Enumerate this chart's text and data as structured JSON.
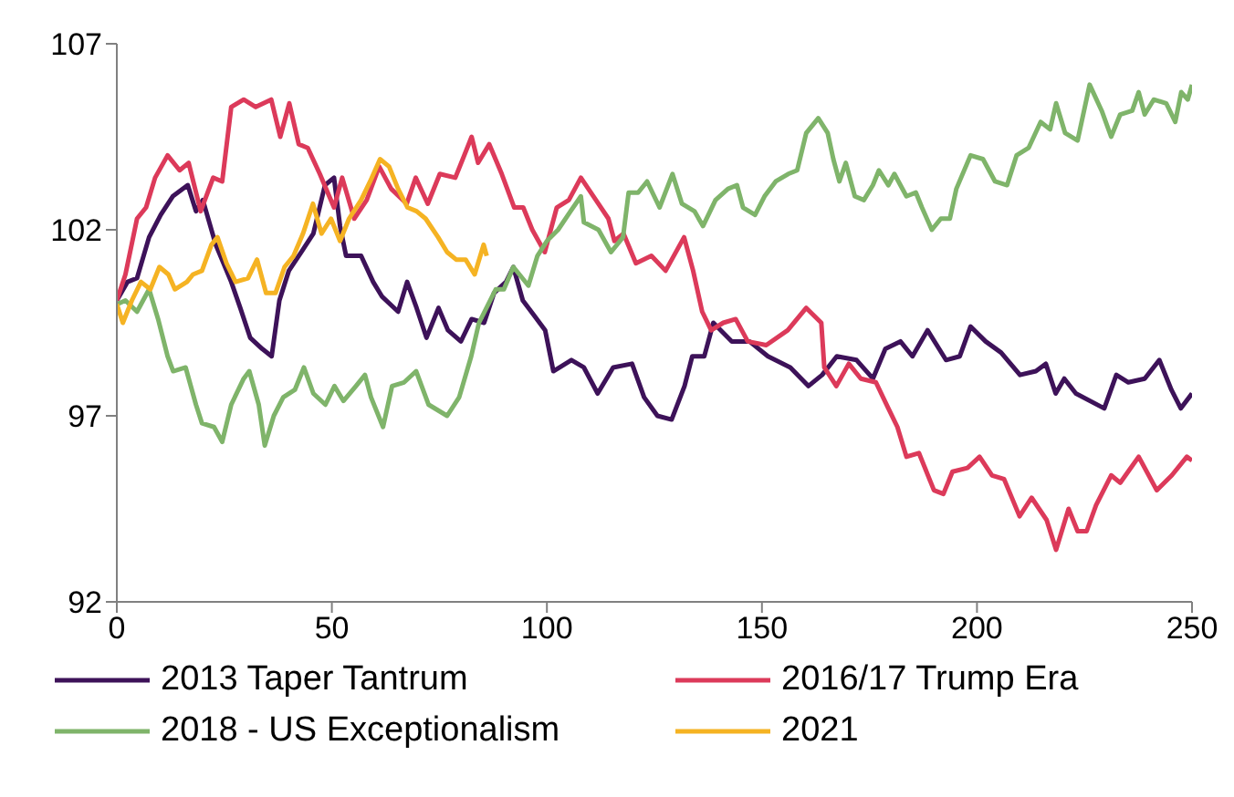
{
  "chart_data": {
    "type": "line",
    "xlim": [
      0,
      250
    ],
    "xticks": [
      0,
      50,
      100,
      150,
      200,
      250
    ],
    "ylim": [
      92,
      107
    ],
    "yticks": [
      92,
      97,
      102,
      107
    ],
    "grid": false,
    "legend": "bottom",
    "marker": "none",
    "line_style": "solid",
    "series": [
      {
        "name": "2013 Taper Tantrum",
        "color": "#3d1259",
        "x": [
          0,
          2.5,
          4.7,
          7.5,
          10.2,
          13,
          16.5,
          18.4,
          20,
          23,
          26.6,
          28.7,
          31,
          33.8,
          36,
          37.8,
          40,
          42.9,
          45.7,
          48.4,
          50.5,
          51.9,
          53.3,
          56.8,
          59.6,
          61.7,
          65.4,
          67.5,
          69.7,
          72,
          74.8,
          77,
          80,
          82.5,
          85.4,
          87.7,
          90.5,
          92.2,
          94.4,
          97,
          99.6,
          101.5,
          105.7,
          108.6,
          111.8,
          115.4,
          119.8,
          122.6,
          125.7,
          129,
          132,
          133.8,
          136.6,
          138.7,
          143,
          147.1,
          151.4,
          156.6,
          160.8,
          164,
          167.4,
          172,
          175.8,
          178.7,
          182.2,
          185,
          188.5,
          192.8,
          196,
          198.5,
          202,
          205.6,
          210,
          213.7,
          216,
          218.3,
          220.3,
          223,
          229.6,
          232.4,
          235.2,
          239,
          242.4,
          245.2,
          247.4,
          250
        ],
        "values": [
          100.1,
          100.6,
          100.7,
          101.8,
          102.4,
          102.9,
          103.2,
          102.5,
          102.8,
          101.6,
          100.6,
          99.9,
          99.1,
          98.8,
          98.6,
          100.1,
          100.9,
          101.4,
          101.9,
          103.2,
          103.4,
          102.1,
          101.3,
          101.3,
          100.6,
          100.2,
          99.8,
          100.6,
          99.9,
          99.1,
          99.9,
          99.3,
          99,
          99.6,
          99.5,
          100.3,
          100.6,
          101,
          100.1,
          99.7,
          99.3,
          98.2,
          98.5,
          98.3,
          97.6,
          98.3,
          98.4,
          97.5,
          97,
          96.9,
          97.8,
          98.6,
          98.6,
          99.5,
          99,
          99,
          98.6,
          98.3,
          97.8,
          98.1,
          98.6,
          98.5,
          98,
          98.8,
          99,
          98.6,
          99.3,
          98.5,
          98.6,
          99.4,
          99,
          98.7,
          98.1,
          98.2,
          98.4,
          97.6,
          98,
          97.6,
          97.2,
          98.1,
          97.9,
          98,
          98.5,
          97.7,
          97.2,
          97.6
        ]
      },
      {
        "name": "2016/17 Trump Era",
        "color": "#dc3a5a",
        "x": [
          0,
          2,
          4.7,
          6.8,
          8.9,
          11.8,
          14.6,
          16.7,
          19.5,
          22.4,
          24.5,
          26.6,
          29.5,
          32.3,
          35.9,
          38,
          40.1,
          42.3,
          44.4,
          47.2,
          50.5,
          52.4,
          55.2,
          58.1,
          61,
          63.8,
          67.4,
          69.5,
          72.3,
          75.1,
          78.7,
          82.5,
          84,
          86.6,
          89.5,
          92.4,
          94.5,
          96.6,
          99.5,
          102.3,
          105.1,
          107.9,
          111.4,
          114.3,
          115.7,
          117.8,
          120.7,
          124.3,
          127.6,
          131.9,
          134,
          136.1,
          138.2,
          141,
          143.9,
          146.7,
          151,
          156,
          160.3,
          163.8,
          164.5,
          167.3,
          170.2,
          173,
          176.5,
          179.4,
          181.5,
          183.6,
          186.5,
          190,
          192.2,
          194.3,
          197.8,
          200.6,
          203.5,
          206.3,
          209.9,
          212.7,
          216.2,
          218.4,
          221.3,
          223.4,
          225.5,
          227.7,
          231.2,
          233.3,
          237.6,
          241.8,
          245.3,
          248.8,
          250
        ],
        "values": [
          100.1,
          100.8,
          102.3,
          102.6,
          103.4,
          104,
          103.6,
          103.8,
          102.5,
          103.4,
          103.3,
          105.3,
          105.5,
          105.3,
          105.5,
          104.5,
          105.4,
          104.3,
          104.2,
          103.5,
          102.6,
          103.4,
          102.3,
          102.8,
          103.7,
          103.1,
          102.7,
          103.4,
          102.7,
          103.5,
          103.4,
          104.5,
          103.8,
          104.3,
          103.5,
          102.6,
          102.6,
          102,
          101.4,
          102.6,
          102.8,
          103.4,
          102.8,
          102.3,
          101.7,
          101.9,
          101.1,
          101.3,
          100.9,
          101.8,
          100.9,
          99.8,
          99.3,
          99.5,
          99.6,
          99,
          98.9,
          99.3,
          99.9,
          99.5,
          98.3,
          97.8,
          98.4,
          98,
          97.9,
          97.2,
          96.7,
          95.9,
          96,
          95,
          94.9,
          95.5,
          95.6,
          95.9,
          95.4,
          95.3,
          94.3,
          94.8,
          94.2,
          93.4,
          94.5,
          93.9,
          93.9,
          94.6,
          95.4,
          95.2,
          95.9,
          95,
          95.4,
          95.9,
          95.8
        ]
      },
      {
        "name": "2018 - US Exceptionalism",
        "color": "#7fb46a",
        "x": [
          0,
          2,
          4.7,
          7.5,
          9.6,
          11.8,
          13.1,
          16,
          18.4,
          19.8,
          22.6,
          24.5,
          26.6,
          29.5,
          30.8,
          33,
          34.4,
          36.5,
          38.7,
          41.4,
          43.5,
          45.7,
          48.5,
          50.6,
          52.7,
          55.6,
          57.7,
          59.1,
          61.9,
          64,
          66.8,
          69.6,
          72.5,
          76.8,
          79.6,
          82.4,
          84.2,
          88.1,
          90,
          92.2,
          95.7,
          97.8,
          100,
          102.6,
          105.5,
          107.9,
          108.6,
          112,
          114.9,
          117.7,
          119,
          121.2,
          123.3,
          126.2,
          129.2,
          131.4,
          134.3,
          136.3,
          139.2,
          142.1,
          144.2,
          145.6,
          148.4,
          150.6,
          153.2,
          156.1,
          158.2,
          160.3,
          163.1,
          165.3,
          166.6,
          168,
          169.5,
          171.6,
          173.7,
          175.8,
          177.2,
          179.4,
          180.8,
          183.6,
          185.8,
          187.2,
          189.5,
          191.6,
          193.7,
          195.2,
          198.5,
          201.4,
          204.2,
          207,
          209.2,
          212,
          214.8,
          217,
          218.4,
          220.5,
          223.4,
          226.2,
          229,
          231.2,
          233.3,
          236.1,
          237.6,
          239,
          241.1,
          244,
          246.1,
          247.5,
          249,
          250
        ],
        "values": [
          100,
          100.1,
          99.8,
          100.4,
          99.6,
          98.6,
          98.2,
          98.3,
          97.3,
          96.8,
          96.7,
          96.3,
          97.3,
          98,
          98.2,
          97.3,
          96.2,
          97,
          97.5,
          97.7,
          98.3,
          97.6,
          97.3,
          97.8,
          97.4,
          97.8,
          98.1,
          97.5,
          96.7,
          97.8,
          97.9,
          98.2,
          97.3,
          97,
          97.5,
          98.6,
          99.5,
          100.4,
          100.4,
          101,
          100.5,
          101.3,
          101.7,
          102,
          102.5,
          102.9,
          102.2,
          102,
          101.4,
          101.8,
          103,
          103,
          103.3,
          102.6,
          103.5,
          102.7,
          102.5,
          102.1,
          102.8,
          103.1,
          103.2,
          102.6,
          102.4,
          102.9,
          103.3,
          103.5,
          103.6,
          104.6,
          105,
          104.6,
          103.9,
          103.3,
          103.8,
          102.9,
          102.8,
          103.2,
          103.6,
          103.2,
          103.5,
          102.9,
          103,
          102.6,
          102,
          102.3,
          102.3,
          103.1,
          104,
          103.9,
          103.3,
          103.2,
          104,
          104.2,
          104.9,
          104.7,
          105.4,
          104.6,
          104.4,
          105.9,
          105.2,
          104.5,
          105.1,
          105.2,
          105.7,
          105.1,
          105.5,
          105.4,
          104.9,
          105.7,
          105.5,
          105.9
        ]
      },
      {
        "name": "2021",
        "color": "#f5b323",
        "x": [
          0,
          1.4,
          3.5,
          5.6,
          7.8,
          9.9,
          12,
          13.5,
          16.3,
          17.7,
          19.8,
          22,
          23.4,
          25.5,
          27.6,
          30.5,
          32.6,
          34.7,
          36.9,
          39,
          41.1,
          43.3,
          45.6,
          47.6,
          49.8,
          51.9,
          54,
          56.8,
          58.9,
          61.2,
          63.3,
          65.4,
          67.6,
          69.7,
          71.8,
          74.7,
          76.8,
          78.9,
          81.1,
          83.2,
          85.3,
          86
        ],
        "values": [
          100,
          99.5,
          100.1,
          100.6,
          100.4,
          101,
          100.8,
          100.4,
          100.6,
          100.8,
          100.9,
          101.6,
          101.8,
          101.1,
          100.6,
          100.7,
          101.2,
          100.3,
          100.3,
          101,
          101.3,
          101.9,
          102.7,
          101.9,
          102.3,
          101.7,
          102.3,
          102.8,
          103.3,
          103.9,
          103.7,
          103.1,
          102.6,
          102.5,
          102.3,
          101.8,
          101.4,
          101.2,
          101.2,
          100.8,
          101.6,
          101.3
        ]
      }
    ]
  }
}
